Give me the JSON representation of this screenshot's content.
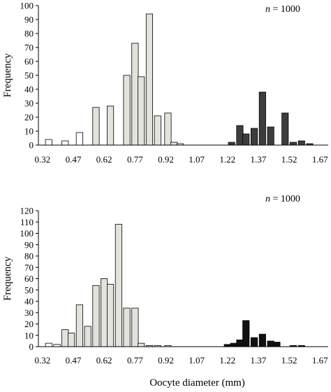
{
  "chart_data": [
    {
      "type": "bar",
      "ylabel": "Frequency",
      "xlabel": "",
      "annotation": {
        "italic": "n",
        "rest": " = 1000"
      },
      "ylim": [
        0,
        100
      ],
      "yticks": [
        0,
        10,
        20,
        30,
        40,
        50,
        60,
        70,
        80,
        90,
        100
      ],
      "xtick_labels": [
        "0.32",
        "0.47",
        "0.62",
        "0.77",
        "0.92",
        "1.07",
        "1.22",
        "1.37",
        "1.52",
        "1.67"
      ],
      "bin_start": 0.32,
      "bin_width": 0.0375,
      "series": [
        {
          "fill": "#ffffff",
          "x": [
            0.35,
            0.43,
            0.5
          ],
          "values": [
            4,
            3,
            9
          ]
        },
        {
          "fill": "#e3e3dc",
          "x": [
            0.58,
            0.65,
            0.73,
            0.77,
            0.8,
            0.84,
            0.88,
            0.93,
            0.96
          ],
          "values": [
            27,
            28,
            50,
            73,
            49,
            94,
            21,
            23,
            2
          ]
        },
        {
          "fill": "#ffffff",
          "x": [
            0.99
          ],
          "values": [
            1
          ]
        },
        {
          "fill": "#3d3d3d",
          "x": [
            1.24,
            1.28,
            1.31,
            1.35,
            1.39,
            1.43,
            1.47,
            1.5,
            1.54,
            1.58,
            1.62,
            1.65
          ],
          "values": [
            2,
            14,
            8,
            12,
            38,
            13,
            0,
            23,
            2,
            3,
            1,
            0
          ]
        }
      ]
    },
    {
      "type": "bar",
      "ylabel": "Frequency",
      "xlabel": "Oocyte diameter (mm)",
      "annotation": {
        "italic": "n",
        "rest": " = 1000"
      },
      "ylim": [
        0,
        120
      ],
      "yticks": [
        0,
        10,
        20,
        30,
        40,
        50,
        60,
        70,
        80,
        90,
        100,
        110,
        120
      ],
      "xtick_labels": [
        "0.32",
        "0.47",
        "0.62",
        "0.77",
        "0.92",
        "1.07",
        "1.22",
        "1.37",
        "1.52",
        "1.67"
      ],
      "bin_start": 0.32,
      "bin_width": 0.0375,
      "series": [
        {
          "fill": "#ffffff",
          "x": [
            0.35,
            0.39
          ],
          "values": [
            3,
            2
          ]
        },
        {
          "fill": "#e3e3dc",
          "x": [
            0.43,
            0.46,
            0.5,
            0.54,
            0.58,
            0.62,
            0.65,
            0.69,
            0.73,
            0.77,
            0.8,
            0.84
          ],
          "values": [
            15,
            12,
            37,
            18,
            54,
            60,
            55,
            108,
            34,
            34,
            3,
            1
          ]
        },
        {
          "fill": "#ffffff",
          "x": [
            0.88,
            0.93,
            0.99,
            1.07
          ],
          "values": [
            1,
            1,
            0,
            0
          ]
        },
        {
          "fill": "#111111",
          "x": [
            1.22,
            1.25,
            1.28,
            1.31,
            1.35,
            1.39,
            1.43,
            1.46,
            1.5,
            1.54,
            1.58,
            1.62,
            1.65
          ],
          "values": [
            2,
            3,
            6,
            23,
            8,
            11,
            5,
            4,
            0,
            1,
            1,
            0,
            0
          ]
        }
      ]
    }
  ]
}
